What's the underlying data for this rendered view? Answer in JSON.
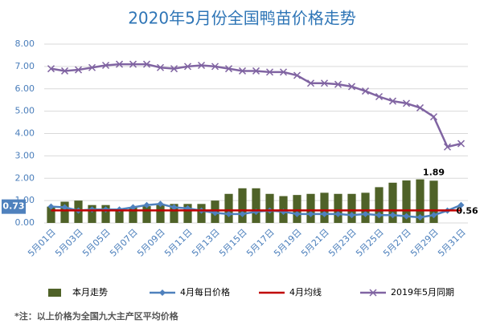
{
  "chart_data": {
    "type": "bar_line",
    "title": "2020年5月份全国鸭苗价格走势",
    "footnote": "*注：以上价格为全国九大主产区平均价格",
    "categories": [
      "5月01日",
      null,
      "5月03日",
      null,
      "5月05日",
      null,
      "5月07日",
      null,
      "5月09日",
      null,
      "5月11日",
      null,
      "5月13日",
      null,
      "5月15日",
      null,
      "5月17日",
      null,
      "5月19日",
      null,
      "5月21日",
      null,
      "5月23日",
      null,
      "5月25日",
      null,
      "5月27日",
      null,
      "5月29日",
      null,
      "5月31日"
    ],
    "ylim": [
      0,
      8
    ],
    "yticks": [
      {
        "value": 0,
        "label": "0.00"
      },
      {
        "value": 1,
        "label": "1.00"
      },
      {
        "value": 2,
        "label": "2.00"
      },
      {
        "value": 3,
        "label": "3.00"
      },
      {
        "value": 4,
        "label": "4.00"
      },
      {
        "value": 5,
        "label": "5.00"
      },
      {
        "value": 6,
        "label": "6.00"
      },
      {
        "value": 7,
        "label": "7.00"
      },
      {
        "value": 8,
        "label": "8.00"
      }
    ],
    "grid": true,
    "legend": "bottom",
    "series": [
      {
        "name": "本月走势",
        "type": "bar",
        "color": "#4f6228",
        "values": [
          0.73,
          0.95,
          1.0,
          0.8,
          0.8,
          0.6,
          0.7,
          0.75,
          0.85,
          0.85,
          0.85,
          0.85,
          1.0,
          1.3,
          1.55,
          1.55,
          1.3,
          1.2,
          1.25,
          1.3,
          1.35,
          1.3,
          1.3,
          1.35,
          1.6,
          1.8,
          1.9,
          1.95,
          1.89,
          null,
          null
        ],
        "value_labels": [
          null,
          null,
          null,
          null,
          null,
          null,
          null,
          null,
          null,
          null,
          null,
          null,
          null,
          null,
          null,
          null,
          null,
          null,
          null,
          null,
          null,
          null,
          null,
          null,
          null,
          null,
          null,
          null,
          "1.89",
          null,
          null
        ]
      },
      {
        "name": "4月每日价格",
        "type": "line",
        "marker": "diamond",
        "color": "#4f81bd",
        "values": [
          0.73,
          0.7,
          0.55,
          0.6,
          0.6,
          0.6,
          0.7,
          0.8,
          0.85,
          0.7,
          0.65,
          0.55,
          0.45,
          0.4,
          0.4,
          0.5,
          0.55,
          0.5,
          0.4,
          0.4,
          0.4,
          0.4,
          0.35,
          0.4,
          0.35,
          0.35,
          0.3,
          0.25,
          0.35,
          0.55,
          0.8
        ],
        "value_labels": [
          "0.73",
          null,
          null,
          null,
          null,
          null,
          null,
          null,
          null,
          null,
          null,
          null,
          null,
          null,
          null,
          null,
          null,
          null,
          null,
          null,
          null,
          null,
          null,
          null,
          null,
          null,
          null,
          null,
          null,
          null,
          null
        ]
      },
      {
        "name": "4月均线",
        "type": "line",
        "color": "#c00000",
        "values": [
          0.56,
          0.56,
          0.56,
          0.56,
          0.56,
          0.56,
          0.56,
          0.56,
          0.56,
          0.56,
          0.56,
          0.56,
          0.56,
          0.56,
          0.56,
          0.56,
          0.56,
          0.56,
          0.56,
          0.56,
          0.56,
          0.56,
          0.56,
          0.56,
          0.56,
          0.56,
          0.56,
          0.56,
          0.56,
          0.56,
          0.56
        ],
        "value_labels": [
          null,
          null,
          null,
          null,
          null,
          null,
          null,
          null,
          null,
          null,
          null,
          null,
          null,
          null,
          null,
          null,
          null,
          null,
          null,
          null,
          null,
          null,
          null,
          null,
          null,
          null,
          null,
          null,
          null,
          null,
          "0.56"
        ]
      },
      {
        "name": "2019年5月同期",
        "type": "line",
        "marker": "x",
        "color": "#8064a2",
        "values": [
          6.9,
          6.8,
          6.85,
          6.95,
          7.05,
          7.1,
          7.1,
          7.1,
          6.95,
          6.9,
          7.0,
          7.05,
          7.0,
          6.9,
          6.8,
          6.8,
          6.75,
          6.75,
          6.6,
          6.25,
          6.25,
          6.2,
          6.1,
          5.9,
          5.65,
          5.45,
          5.35,
          5.15,
          4.75,
          3.4,
          3.55
        ]
      }
    ]
  }
}
